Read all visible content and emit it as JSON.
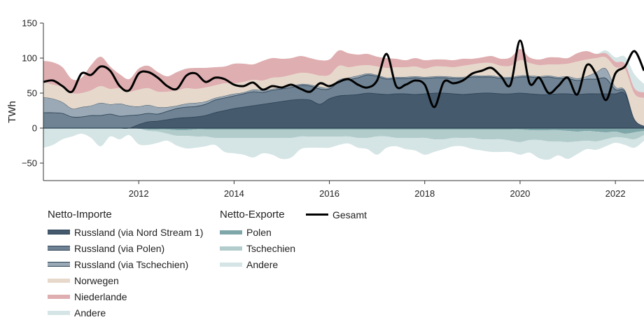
{
  "chart_data": {
    "type": "area",
    "ylabel": "TWh",
    "xlabel": "",
    "ylim": [
      -75,
      150
    ],
    "xlim": [
      2010.0,
      2022.6
    ],
    "yticks": [
      -50,
      0,
      50,
      100,
      150
    ],
    "xticks": [
      2012,
      2014,
      2016,
      2018,
      2020,
      2022
    ],
    "x": [
      2010.0,
      2010.2,
      2010.4,
      2010.6,
      2010.8,
      2011.0,
      2011.2,
      2011.4,
      2011.6,
      2011.8,
      2012.0,
      2012.2,
      2012.4,
      2012.6,
      2012.8,
      2013.0,
      2013.2,
      2013.4,
      2013.6,
      2013.8,
      2014.0,
      2014.2,
      2014.4,
      2014.6,
      2014.8,
      2015.0,
      2015.2,
      2015.4,
      2015.6,
      2015.8,
      2016.0,
      2016.2,
      2016.4,
      2016.6,
      2016.8,
      2017.0,
      2017.2,
      2017.4,
      2017.6,
      2017.8,
      2018.0,
      2018.2,
      2018.4,
      2018.6,
      2018.8,
      2019.0,
      2019.2,
      2019.4,
      2019.6,
      2019.8,
      2020.0,
      2020.2,
      2020.4,
      2020.6,
      2020.8,
      2021.0,
      2021.2,
      2021.4,
      2021.6,
      2021.8,
      2022.0,
      2022.2,
      2022.4,
      2022.6
    ],
    "import_series": [
      {
        "name": "Russland (via Nord Stream 1)",
        "color": "#465a6e",
        "values": [
          0,
          0,
          0,
          0,
          0,
          0,
          0,
          0,
          0,
          0,
          5,
          9,
          10,
          12,
          14,
          15,
          16,
          18,
          22,
          25,
          28,
          30,
          32,
          34,
          36,
          38,
          40,
          41,
          40,
          34,
          42,
          46,
          47,
          48,
          50,
          49,
          48,
          49,
          49,
          48,
          49,
          50,
          50,
          49,
          48,
          49,
          50,
          50,
          49,
          49,
          50,
          49,
          48,
          48,
          49,
          49,
          48,
          49,
          49,
          49,
          49,
          49,
          12,
          3
        ]
      },
      {
        "name": "Russland (via Polen)",
        "color": "#6f8394",
        "values": [
          22,
          22,
          21,
          16,
          16,
          18,
          18,
          20,
          17,
          18,
          14,
          12,
          10,
          12,
          14,
          15,
          15,
          16,
          18,
          18,
          18,
          19,
          20,
          17,
          18,
          18,
          18,
          20,
          20,
          22,
          14,
          20,
          22,
          24,
          26,
          25,
          22,
          22,
          22,
          24,
          22,
          22,
          22,
          22,
          23,
          24,
          23,
          23,
          22,
          22,
          23,
          24,
          24,
          25,
          22,
          22,
          20,
          21,
          21,
          22,
          6,
          3,
          1,
          0
        ]
      },
      {
        "name": "Russland (via Tschechien)",
        "color": "#9aa9b5",
        "values": [
          22,
          20,
          16,
          12,
          14,
          14,
          18,
          14,
          18,
          14,
          12,
          12,
          10,
          6,
          4,
          5,
          5,
          4,
          3,
          3,
          3,
          2,
          3,
          3,
          2,
          2,
          2,
          2,
          2,
          3,
          2,
          3,
          3,
          3,
          2,
          2,
          2,
          2,
          2,
          2,
          2,
          2,
          2,
          2,
          2,
          2,
          2,
          2,
          2,
          2,
          2,
          2,
          2,
          2,
          2,
          3,
          3,
          4,
          10,
          14,
          4,
          2,
          0,
          0
        ]
      },
      {
        "name": "Norwegen",
        "color": "#e6d9cc",
        "values": [
          22,
          20,
          22,
          22,
          20,
          22,
          24,
          22,
          22,
          20,
          24,
          24,
          22,
          22,
          22,
          22,
          20,
          20,
          18,
          18,
          15,
          15,
          14,
          14,
          16,
          15,
          16,
          16,
          16,
          16,
          18,
          20,
          15,
          14,
          12,
          12,
          14,
          14,
          14,
          14,
          12,
          14,
          14,
          14,
          16,
          16,
          18,
          18,
          16,
          16,
          22,
          18,
          16,
          16,
          18,
          18,
          24,
          24,
          20,
          16,
          28,
          30,
          36,
          40
        ]
      },
      {
        "name": "Niederlande",
        "color": "#dfaeb0",
        "values": [
          30,
          32,
          28,
          20,
          22,
          36,
          42,
          32,
          20,
          18,
          30,
          32,
          28,
          22,
          26,
          28,
          30,
          28,
          26,
          24,
          28,
          26,
          22,
          28,
          28,
          26,
          24,
          24,
          22,
          22,
          22,
          22,
          20,
          16,
          16,
          14,
          14,
          12,
          10,
          12,
          12,
          10,
          10,
          10,
          10,
          8,
          8,
          10,
          10,
          12,
          16,
          8,
          8,
          10,
          10,
          8,
          12,
          12,
          6,
          6,
          8,
          8,
          8,
          8
        ]
      },
      {
        "name": "Andere",
        "color": "#d5e4e4",
        "values": [
          0,
          0,
          0,
          0,
          0,
          0,
          0,
          0,
          0,
          0,
          0,
          0,
          0,
          0,
          0,
          0,
          0,
          0,
          0,
          0,
          0,
          0,
          0,
          0,
          0,
          0,
          0,
          0,
          0,
          0,
          0,
          0,
          0,
          0,
          0,
          0,
          0,
          0,
          0,
          0,
          0,
          0,
          0,
          0,
          0,
          0,
          0,
          0,
          0,
          0,
          0,
          0,
          0,
          0,
          0,
          0,
          0,
          0,
          0,
          4,
          6,
          10,
          20,
          12
        ]
      }
    ],
    "export_series": [
      {
        "name": "Polen",
        "color": "#7fa6a8",
        "values": [
          0,
          0,
          0,
          0,
          0,
          0,
          0,
          0,
          0,
          0,
          -1,
          -2,
          -2,
          -2,
          -3,
          -3,
          -2,
          -2,
          -2,
          -2,
          -2,
          -2,
          -2,
          -2,
          -2,
          -2,
          -2,
          -2,
          -2,
          -2,
          -2,
          -2,
          -2,
          -2,
          -2,
          -2,
          -2,
          -2,
          -2,
          -2,
          -2,
          -2,
          -2,
          -2,
          -2,
          -2,
          -2,
          -2,
          -2,
          -2,
          -2,
          -3,
          -3,
          -3,
          -3,
          -4,
          -5,
          -4,
          -5,
          -6,
          -5,
          -8,
          -6,
          -4
        ]
      },
      {
        "name": "Tschechien",
        "color": "#b2cccc",
        "values": [
          0,
          0,
          0,
          0,
          0,
          0,
          0,
          0,
          0,
          0,
          0,
          -2,
          -3,
          -6,
          -8,
          -8,
          -10,
          -10,
          -12,
          -12,
          -12,
          -12,
          -12,
          -12,
          -12,
          -12,
          -12,
          -10,
          -10,
          -10,
          -10,
          -10,
          -10,
          -12,
          -12,
          -10,
          -10,
          -12,
          -12,
          -12,
          -12,
          -14,
          -14,
          -12,
          -12,
          -12,
          -14,
          -14,
          -14,
          -16,
          -18,
          -14,
          -14,
          -16,
          -16,
          -16,
          -14,
          -14,
          -14,
          -10,
          -8,
          -6,
          -10,
          -6
        ]
      },
      {
        "name": "Andere",
        "color": "#d5e4e4",
        "values": [
          -28,
          -24,
          -16,
          -12,
          -8,
          -14,
          -26,
          -12,
          -16,
          -10,
          -22,
          -20,
          -16,
          -10,
          -14,
          -18,
          -16,
          -14,
          -10,
          -20,
          -22,
          -24,
          -28,
          -22,
          -24,
          -30,
          -28,
          -18,
          -16,
          -16,
          -16,
          -12,
          -10,
          -14,
          -16,
          -26,
          -16,
          -12,
          -16,
          -18,
          -24,
          -18,
          -14,
          -12,
          -12,
          -16,
          -16,
          -18,
          -18,
          -16,
          -18,
          -18,
          -26,
          -26,
          -20,
          -24,
          -18,
          -12,
          -12,
          -10,
          -8,
          -10,
          -12,
          -8
        ]
      }
    ],
    "total_series": {
      "name": "Gesamt",
      "color": "#000000",
      "values": [
        66,
        68,
        60,
        52,
        78,
        76,
        88,
        82,
        60,
        54,
        78,
        80,
        72,
        60,
        56,
        75,
        78,
        66,
        72,
        70,
        62,
        60,
        65,
        55,
        60,
        58,
        62,
        56,
        52,
        64,
        60,
        66,
        70,
        62,
        58,
        68,
        106,
        60,
        62,
        68,
        62,
        30,
        66,
        64,
        68,
        78,
        82,
        86,
        74,
        62,
        125,
        64,
        72,
        50,
        60,
        72,
        48,
        90,
        76,
        40,
        78,
        88,
        110,
        82
      ]
    },
    "legend": {
      "imports_title": "Netto-Importe",
      "exports_title": "Netto-Exporte",
      "imports": [
        "Russland (via Nord Stream 1)",
        "Russland (via Polen)",
        "Russland (via Tschechien)",
        "Norwegen",
        "Niederlande",
        "Andere"
      ],
      "exports": [
        "Polen",
        "Tschechien",
        "Andere"
      ],
      "total": "Gesamt",
      "placement": "bottom-left"
    }
  }
}
